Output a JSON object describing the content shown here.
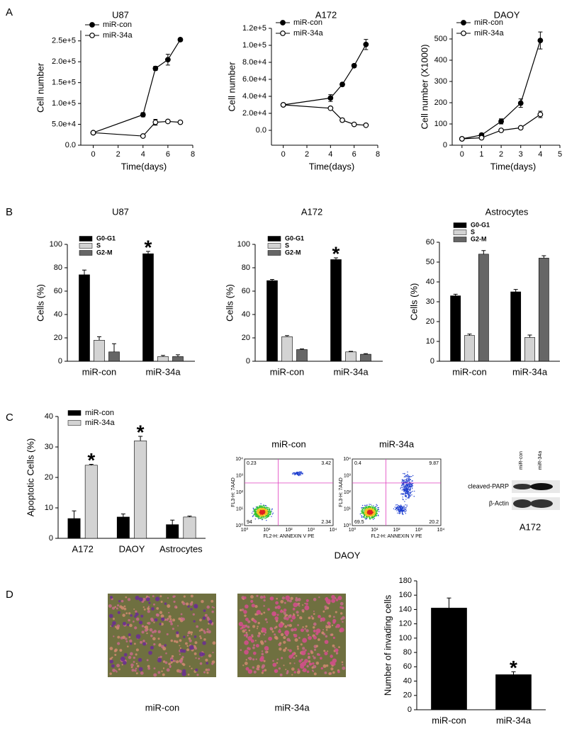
{
  "panel_labels": [
    "A",
    "B",
    "C",
    "D"
  ],
  "chart_data": [
    {
      "type": "line",
      "title": "U87",
      "xlabel": "Time(days)",
      "ylabel": "Cell number",
      "x": [
        0,
        4,
        5,
        6,
        7
      ],
      "series": [
        {
          "name": "miR-con",
          "color": "#000000",
          "marker_fill": "#000000",
          "values": [
            30000,
            73000,
            184000,
            205000,
            253000
          ],
          "errors": [
            0,
            5000,
            5000,
            13000,
            4000
          ]
        },
        {
          "name": "miR-34a",
          "color": "#000000",
          "marker_fill": "#ffffff",
          "values": [
            30000,
            22000,
            55000,
            57000,
            55000
          ],
          "errors": [
            0,
            0,
            7000,
            3000,
            3000
          ]
        }
      ],
      "xlim": [
        -1,
        8
      ],
      "xticks": [
        0,
        2,
        4,
        6,
        8
      ],
      "ylim": [
        0,
        275000
      ],
      "yticks": [
        {
          "value": 0,
          "label": "0.0"
        },
        {
          "value": 50000,
          "label": "5.0e+4"
        },
        {
          "value": 100000,
          "label": "1.0e+5"
        },
        {
          "value": 150000,
          "label": "1.5e+5"
        },
        {
          "value": 200000,
          "label": "2.0e+5"
        },
        {
          "value": 250000,
          "label": "2.5e+5"
        }
      ],
      "legend": "upper left"
    },
    {
      "type": "line",
      "title": "A172",
      "xlabel": "Time(days)",
      "ylabel": "Cell number",
      "x": [
        0,
        4,
        5,
        6,
        7
      ],
      "series": [
        {
          "name": "miR-con",
          "color": "#000000",
          "marker_fill": "#000000",
          "values": [
            30000,
            38000,
            54000,
            76000,
            101000
          ],
          "errors": [
            0,
            4000,
            2000,
            2000,
            6000
          ]
        },
        {
          "name": "miR-34a",
          "color": "#000000",
          "marker_fill": "#ffffff",
          "values": [
            30000,
            26000,
            12000,
            7000,
            6000
          ],
          "errors": [
            0,
            0,
            2000,
            0,
            0
          ]
        }
      ],
      "xlim": [
        -1,
        8
      ],
      "xticks": [
        0,
        2,
        4,
        6,
        8
      ],
      "ylim": [
        -17500,
        120000
      ],
      "yticks": [
        {
          "value": 0,
          "label": "0.0"
        },
        {
          "value": 20000,
          "label": "2.0e+4"
        },
        {
          "value": 40000,
          "label": "4.0e+4"
        },
        {
          "value": 60000,
          "label": "6.0e+4"
        },
        {
          "value": 80000,
          "label": "8.0e+4"
        },
        {
          "value": 100000,
          "label": "1.0e+5"
        },
        {
          "value": 120000,
          "label": "1.2e+5"
        }
      ],
      "legend": "upper left"
    },
    {
      "type": "line",
      "title": "DAOY",
      "xlabel": "Time(days)",
      "ylabel": "Cell number (X1000)",
      "x": [
        0,
        1,
        2,
        3,
        4
      ],
      "series": [
        {
          "name": "miR-con",
          "color": "#000000",
          "marker_fill": "#000000",
          "values": [
            30,
            48,
            112,
            198,
            493
          ],
          "errors": [
            0,
            8,
            12,
            20,
            40
          ]
        },
        {
          "name": "miR-34a",
          "color": "#000000",
          "marker_fill": "#ffffff",
          "values": [
            30,
            35,
            70,
            82,
            145
          ],
          "errors": [
            0,
            3,
            5,
            5,
            15
          ]
        }
      ],
      "xlim": [
        -0.5,
        5
      ],
      "xticks": [
        0,
        1,
        2,
        3,
        4,
        5
      ],
      "ylim": [
        0,
        550
      ],
      "yticks": [
        0,
        100,
        200,
        300,
        400,
        500
      ],
      "legend": "upper left"
    },
    {
      "type": "bar",
      "title": "U87",
      "ylabel": "Cells (%)",
      "categories": [
        "miR-con",
        "miR-34a"
      ],
      "series": [
        {
          "name": "G0-G1",
          "color": "#000000",
          "values": [
            74,
            92
          ],
          "errors": [
            4,
            2
          ]
        },
        {
          "name": "S",
          "color": "#d3d3d3",
          "values": [
            18,
            4
          ],
          "errors": [
            3,
            1
          ]
        },
        {
          "name": "G2-M",
          "color": "#666666",
          "values": [
            8,
            4
          ],
          "errors": [
            7,
            1.5
          ]
        }
      ],
      "ylim": [
        0,
        100
      ],
      "yticks": [
        0,
        20,
        40,
        60,
        80,
        100
      ],
      "annotations": [
        {
          "text": "*",
          "category": "miR-34a",
          "series": "G0-G1"
        }
      ],
      "legend": "upper left"
    },
    {
      "type": "bar",
      "title": "A172",
      "ylabel": "Cells (%)",
      "categories": [
        "miR-con",
        "miR-34a"
      ],
      "series": [
        {
          "name": "G0-G1",
          "color": "#000000",
          "values": [
            69,
            87
          ],
          "errors": [
            1,
            1.5
          ]
        },
        {
          "name": "S",
          "color": "#d3d3d3",
          "values": [
            21,
            8
          ],
          "errors": [
            1,
            0.5
          ]
        },
        {
          "name": "G2-M",
          "color": "#666666",
          "values": [
            10,
            6
          ],
          "errors": [
            0.5,
            0.5
          ]
        }
      ],
      "ylim": [
        0,
        100
      ],
      "yticks": [
        0,
        20,
        40,
        60,
        80,
        100
      ],
      "annotations": [
        {
          "text": "*",
          "category": "miR-34a",
          "series": "G0-G1"
        }
      ],
      "legend": "upper left"
    },
    {
      "type": "bar",
      "title": "Astrocytes",
      "ylabel": "Cells (%)",
      "categories": [
        "miR-con",
        "miR-34a"
      ],
      "series": [
        {
          "name": "G0-G1",
          "color": "#000000",
          "values": [
            33,
            35
          ],
          "errors": [
            0.8,
            1.2
          ]
        },
        {
          "name": "S",
          "color": "#d3d3d3",
          "values": [
            13,
            12
          ],
          "errors": [
            0.7,
            1.2
          ]
        },
        {
          "name": "G2-M",
          "color": "#666666",
          "values": [
            54,
            52
          ],
          "errors": [
            1.8,
            1.2
          ]
        }
      ],
      "ylim": [
        0,
        60
      ],
      "yticks": [
        0,
        10,
        20,
        30,
        40,
        50,
        60
      ],
      "legend": "upper left"
    },
    {
      "type": "bar",
      "ylabel": "Apoptotic Cells (%)",
      "categories": [
        "A172",
        "DAOY",
        "Astrocytes"
      ],
      "series": [
        {
          "name": "miR-con",
          "color": "#000000",
          "values": [
            6.5,
            7,
            4.5
          ],
          "errors": [
            2.5,
            1,
            1.5
          ]
        },
        {
          "name": "miR-34a",
          "color": "#d3d3d3",
          "values": [
            24,
            32,
            7
          ],
          "errors": [
            0.3,
            1.5,
            0.3
          ]
        }
      ],
      "ylim": [
        0,
        40
      ],
      "yticks": [
        0,
        10,
        20,
        30,
        40
      ],
      "annotations": [
        {
          "text": "*",
          "category": "A172",
          "series": "miR-34a"
        },
        {
          "text": "*",
          "category": "DAOY",
          "series": "miR-34a"
        }
      ],
      "legend": "upper left"
    },
    {
      "type": "bar",
      "ylabel": "Number of invading cells",
      "categories": [
        "miR-con",
        "miR-34a"
      ],
      "values": [
        142,
        49
      ],
      "errors": [
        14,
        4
      ],
      "color": "#000000",
      "ylim": [
        0,
        180
      ],
      "yticks": [
        0,
        20,
        40,
        60,
        80,
        100,
        120,
        140,
        160,
        180
      ],
      "annotations": [
        {
          "text": "*",
          "category": "miR-34a"
        }
      ]
    }
  ],
  "flow": {
    "plots": [
      {
        "title": "miR-con",
        "quadrants": [
          "0.23",
          "3.42",
          "94",
          "2.34"
        ]
      },
      {
        "title": "miR-34a",
        "quadrants": [
          "0.4",
          "9.87",
          "69.5",
          "20.2"
        ]
      }
    ],
    "y_label": "FL3-H: 7AAD",
    "x_label": "FL2-H: ANNEXIN V PE",
    "ticks": [
      "10⁰",
      "10¹",
      "10²",
      "10³",
      "10⁴"
    ],
    "caption": "DAOY"
  },
  "blot": {
    "lanes": [
      "miR-con",
      "miR-34a"
    ],
    "bands": [
      "cleaved-PARP",
      "β-Actin"
    ],
    "caption": "A172"
  },
  "invasion_images": {
    "captions": [
      "miR-con",
      "miR-34a"
    ]
  }
}
